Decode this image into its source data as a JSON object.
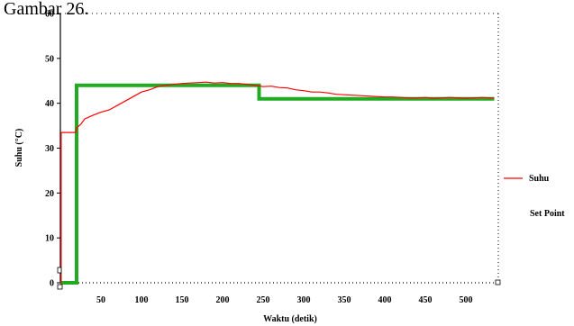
{
  "heading": "Gambar 26.",
  "colors": {
    "suhu": "#ff0000",
    "set_point": "#22aa22",
    "axis": "#000000"
  },
  "chart_data": {
    "type": "line",
    "title": "",
    "xlabel": "Waktu (detik)",
    "ylabel": "Suhu (°C)",
    "xlim": [
      0,
      540
    ],
    "ylim": [
      0,
      60
    ],
    "xticks": [
      50,
      100,
      150,
      200,
      250,
      300,
      350,
      400,
      450,
      500
    ],
    "yticks": [
      0,
      10,
      20,
      30,
      40,
      50,
      60
    ],
    "legend": "right",
    "grid": false,
    "series": [
      {
        "name": "Suhu",
        "color": "#ff0000",
        "x": [
          0,
          1,
          1,
          2,
          2,
          19,
          20,
          25,
          30,
          40,
          50,
          60,
          70,
          80,
          90,
          100,
          110,
          120,
          130,
          140,
          150,
          160,
          170,
          180,
          190,
          200,
          210,
          220,
          230,
          240,
          250,
          260,
          270,
          280,
          290,
          300,
          310,
          320,
          330,
          340,
          350,
          360,
          370,
          380,
          390,
          400,
          410,
          420,
          430,
          440,
          450,
          460,
          470,
          480,
          490,
          500,
          510,
          520,
          530,
          535
        ],
        "y": [
          0,
          0,
          33.5,
          33.5,
          33.5,
          33.5,
          34.5,
          35.3,
          36.5,
          37.3,
          38,
          38.5,
          39.5,
          40.5,
          41.5,
          42.5,
          43,
          43.7,
          44,
          44.2,
          44.4,
          44.5,
          44.6,
          44.7,
          44.5,
          44.6,
          44.4,
          44.4,
          44.2,
          44,
          43.7,
          43.8,
          43.5,
          43.4,
          43,
          42.8,
          42.5,
          42.5,
          42.3,
          42,
          41.9,
          41.8,
          41.7,
          41.6,
          41.5,
          41.4,
          41.4,
          41.3,
          41.2,
          41.2,
          41.3,
          41.1,
          41.2,
          41.3,
          41.2,
          41.1,
          41.2,
          41.3,
          41.2,
          41.2
        ]
      },
      {
        "name": "Set Point",
        "color": "#22aa22",
        "x": [
          0,
          20,
          20,
          245,
          245,
          535
        ],
        "y": [
          0,
          0,
          44,
          44,
          41,
          41
        ]
      }
    ]
  }
}
